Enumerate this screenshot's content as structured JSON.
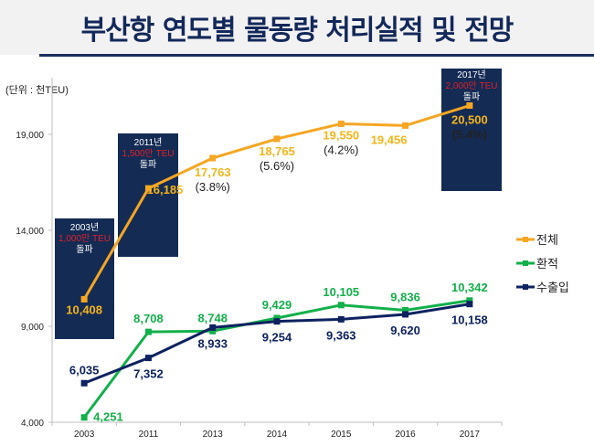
{
  "title": "부산항 연도별 물동량 처리실적 및 전망",
  "chart_data": {
    "type": "line",
    "title": "부산항 연도별 물동량 처리실적 및 전망",
    "unit_label": "(단위 : 천TEU)",
    "categories": [
      "2003",
      "2011",
      "2013",
      "2014",
      "2015",
      "2016",
      "2017"
    ],
    "ylim": [
      4000,
      19000
    ],
    "yticks": [
      4000,
      9000,
      14000,
      19000
    ],
    "ytick_labels": [
      "4,000",
      "9,000",
      "14,000",
      "19,000"
    ],
    "grid": false,
    "legend_position": "right",
    "series": [
      {
        "name": "전체",
        "color": "#f5a623",
        "values": [
          10408,
          16185,
          17763,
          18765,
          19550,
          19456,
          20500
        ],
        "labels": [
          "10,408",
          "16,185",
          "17,763",
          "18,765",
          "19,550",
          "19,456",
          "20,500"
        ],
        "growth": [
          "",
          "",
          "(3.8%)",
          "(5.6%)",
          "(4.2%)",
          "",
          "(5.4%)"
        ]
      },
      {
        "name": "환적",
        "color": "#12b04a",
        "values": [
          4251,
          8708,
          8748,
          9429,
          10105,
          9836,
          10342
        ],
        "labels": [
          "4,251",
          "8,708",
          "8,748",
          "9,429",
          "10,105",
          "9,836",
          "10,342"
        ]
      },
      {
        "name": "수출입",
        "color": "#0e2260",
        "values": [
          6035,
          7352,
          8933,
          9254,
          9363,
          9620,
          10158
        ],
        "labels": [
          "6,035",
          "7,352",
          "8,933",
          "9,254",
          "9,363",
          "9,620",
          "10,158"
        ]
      }
    ],
    "annotations": [
      {
        "year_label": "2003년",
        "milestone": "1,000만 TEU",
        "caption": "돌파"
      },
      {
        "year_label": "2011년",
        "milestone": "1,500만 TEU",
        "caption": "돌파"
      },
      {
        "year_label": "2017년",
        "milestone": "2,000만 TEU",
        "caption": "돌파"
      }
    ]
  },
  "colors": {
    "title": "#13285a",
    "box": "#142b54",
    "milestone_text": "#e0202a"
  }
}
